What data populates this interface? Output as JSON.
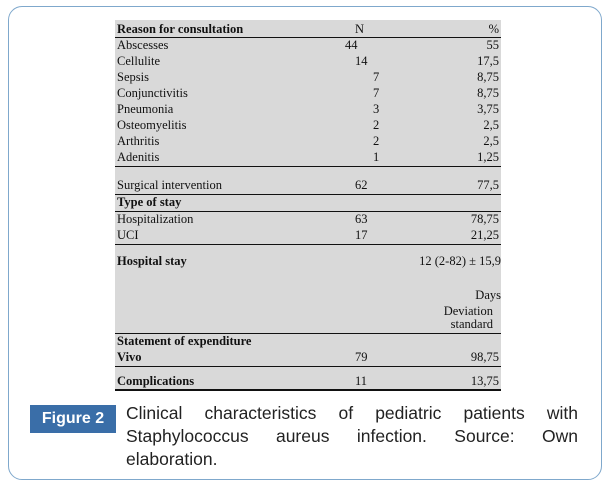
{
  "table": {
    "headers": [
      "Reason for consultation",
      "N",
      "%"
    ],
    "reasons": [
      {
        "label": "Abscesses",
        "n": "44",
        "pct": "55"
      },
      {
        "label": "Cellulite",
        "n": "14",
        "pct": "17,5"
      },
      {
        "label": "Sepsis",
        "n": "7",
        "pct": "8,75"
      },
      {
        "label": "Conjunctivitis",
        "n": "7",
        "pct": "8,75"
      },
      {
        "label": "Pneumonia",
        "n": "3",
        "pct": "3,75"
      },
      {
        "label": "Osteomyelitis",
        "n": "2",
        "pct": "2,5"
      },
      {
        "label": "Arthritis",
        "n": "2",
        "pct": "2,5"
      },
      {
        "label": "Adenitis",
        "n": "1",
        "pct": "1,25"
      }
    ],
    "surgical": {
      "label": "Surgical intervention",
      "n": "62",
      "pct": "77,5"
    },
    "type_of_stay": {
      "label": "Type of stay",
      "rows": [
        {
          "label": "Hospitalization",
          "n": "63",
          "pct": "78,75"
        },
        {
          "label": "UCI",
          "n": "17",
          "pct": "21,25"
        }
      ]
    },
    "hospital_stay": {
      "label": "Hospital stay",
      "value": "12 (2-82) ± 15,9",
      "unit": "Days",
      "note_line1": "Deviation",
      "note_line2": "standard"
    },
    "expenditure": {
      "label": "Statement of expenditure",
      "vivo": {
        "label": "Vivo",
        "n": "79",
        "pct": "98,75"
      }
    },
    "complications": {
      "label": "Complications",
      "n": "11",
      "pct": "13,75"
    }
  },
  "caption": {
    "badge": "Figure 2",
    "text": "Clinical characteristics of pediatric patients with Staphylococcus aureus infection. Source: Own elaboration."
  },
  "colors": {
    "badge_bg": "#3a6ea8",
    "frame_border": "#7fa8cc",
    "table_bg": "#d9d9d9"
  }
}
